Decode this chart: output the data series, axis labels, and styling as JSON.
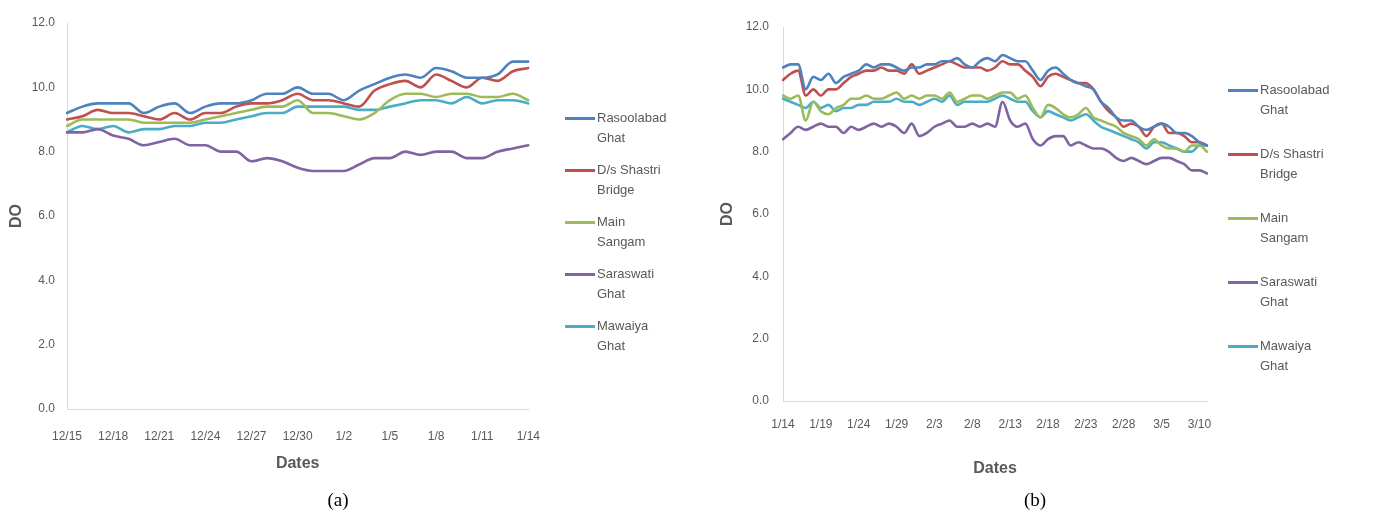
{
  "chart_data": [
    {
      "type": "line",
      "xlabel": "Dates",
      "ylabel": "DO",
      "annotations": [
        "(a)"
      ],
      "categories": [
        "12/15",
        null,
        null,
        "12/18",
        null,
        null,
        "12/21",
        null,
        null,
        "12/24",
        null,
        null,
        "12/27",
        null,
        null,
        "12/30",
        null,
        null,
        "1/2",
        null,
        null,
        "1/5",
        null,
        null,
        "1/8",
        null,
        null,
        "1/11",
        null,
        null,
        "1/14"
      ],
      "series": [
        {
          "name": "Rasoolabad Ghat",
          "color": "#4f81bd",
          "values": [
            9.2,
            9.4,
            9.5,
            9.5,
            9.5,
            9.2,
            9.4,
            9.5,
            9.2,
            9.4,
            9.5,
            9.5,
            9.6,
            9.8,
            9.8,
            10.0,
            9.8,
            9.8,
            9.6,
            9.9,
            10.1,
            10.3,
            10.4,
            10.3,
            10.6,
            10.5,
            10.3,
            10.3,
            10.4,
            10.8,
            10.8
          ]
        },
        {
          "name": "D/s Shastri Bridge",
          "color": "#c0504d",
          "values": [
            9.0,
            9.1,
            9.3,
            9.2,
            9.2,
            9.1,
            9.0,
            9.2,
            9.0,
            9.2,
            9.2,
            9.4,
            9.5,
            9.5,
            9.6,
            9.8,
            9.6,
            9.6,
            9.5,
            9.4,
            9.9,
            10.1,
            10.2,
            10.0,
            10.4,
            10.2,
            10.0,
            10.3,
            10.2,
            10.5,
            10.6
          ]
        },
        {
          "name": "Main Sangam",
          "color": "#9bbb59",
          "values": [
            8.8,
            9.0,
            9.0,
            9.0,
            9.0,
            8.9,
            8.9,
            8.9,
            8.9,
            9.0,
            9.1,
            9.2,
            9.3,
            9.4,
            9.4,
            9.6,
            9.2,
            9.2,
            9.1,
            9.0,
            9.2,
            9.6,
            9.8,
            9.8,
            9.7,
            9.8,
            9.8,
            9.7,
            9.7,
            9.8,
            9.6
          ]
        },
        {
          "name": "Saraswati Ghat",
          "color": "#8064a2",
          "values": [
            8.6,
            8.6,
            8.7,
            8.5,
            8.4,
            8.2,
            8.3,
            8.4,
            8.2,
            8.2,
            8.0,
            8.0,
            7.7,
            7.8,
            7.7,
            7.5,
            7.4,
            7.4,
            7.4,
            7.6,
            7.8,
            7.8,
            8.0,
            7.9,
            8.0,
            8.0,
            7.8,
            7.8,
            8.0,
            8.1,
            8.2
          ]
        },
        {
          "name": "Mawaiya Ghat",
          "color": "#4bacc6",
          "values": [
            8.6,
            8.8,
            8.7,
            8.8,
            8.6,
            8.7,
            8.7,
            8.8,
            8.8,
            8.9,
            8.9,
            9.0,
            9.1,
            9.2,
            9.2,
            9.4,
            9.4,
            9.4,
            9.4,
            9.3,
            9.3,
            9.4,
            9.5,
            9.6,
            9.6,
            9.5,
            9.7,
            9.5,
            9.6,
            9.6,
            9.5
          ]
        }
      ],
      "ylim": [
        0,
        12
      ],
      "yticks": [
        {
          "value": 0,
          "label": "0.0"
        },
        {
          "value": 2,
          "label": "2.0"
        },
        {
          "value": 4,
          "label": "4.0"
        },
        {
          "value": 6,
          "label": "6.0"
        },
        {
          "value": 8,
          "label": "8.0"
        },
        {
          "value": 10,
          "label": "10.0"
        },
        {
          "value": 12,
          "label": "12.0"
        }
      ],
      "legend": "right",
      "marker": "none",
      "line_style": "solid"
    },
    {
      "type": "line",
      "xlabel": "Dates",
      "ylabel": "DO",
      "annotations": [
        "(b)"
      ],
      "categories": [
        "1/14",
        null,
        null,
        null,
        null,
        "1/19",
        null,
        null,
        null,
        null,
        "1/24",
        null,
        null,
        null,
        null,
        "1/29",
        null,
        null,
        null,
        null,
        "2/3",
        null,
        null,
        null,
        null,
        "2/8",
        null,
        null,
        null,
        null,
        "2/13",
        null,
        null,
        null,
        null,
        "2/18",
        null,
        null,
        null,
        null,
        "2/23",
        null,
        null,
        null,
        null,
        "2/28",
        null,
        null,
        null,
        null,
        "3/5",
        null,
        null,
        null,
        null,
        "3/10",
        null
      ],
      "series": [
        {
          "name": "Rasoolabad Ghat",
          "color": "#4f81bd",
          "values": [
            10.7,
            10.8,
            10.8,
            10.0,
            10.4,
            10.3,
            10.5,
            10.2,
            10.4,
            10.5,
            10.6,
            10.8,
            10.7,
            10.8,
            10.8,
            10.7,
            10.6,
            10.7,
            10.7,
            10.8,
            10.8,
            10.9,
            10.9,
            11.0,
            10.8,
            10.7,
            10.9,
            11.0,
            10.9,
            11.1,
            11.0,
            10.9,
            10.9,
            10.6,
            10.3,
            10.6,
            10.7,
            10.5,
            10.3,
            10.2,
            10.1,
            10.0,
            9.6,
            9.4,
            9.1,
            9.0,
            9.0,
            8.8,
            8.7,
            8.8,
            8.9,
            8.8,
            8.6,
            8.6,
            8.5,
            8.3,
            8.2
          ]
        },
        {
          "name": "D/s Shastri Bridge",
          "color": "#c0504d",
          "values": [
            10.3,
            10.5,
            10.6,
            9.8,
            10.0,
            9.8,
            10.0,
            10.0,
            10.2,
            10.4,
            10.5,
            10.6,
            10.6,
            10.7,
            10.6,
            10.6,
            10.5,
            10.8,
            10.5,
            10.6,
            10.7,
            10.8,
            10.9,
            10.8,
            10.7,
            10.7,
            10.7,
            10.6,
            10.7,
            10.9,
            10.8,
            10.8,
            10.6,
            10.4,
            10.1,
            10.4,
            10.5,
            10.4,
            10.3,
            10.2,
            10.2,
            10.0,
            9.6,
            9.3,
            9.1,
            8.8,
            8.9,
            8.8,
            8.5,
            8.8,
            8.9,
            8.6,
            8.6,
            8.5,
            8.3,
            8.3,
            8.2
          ]
        },
        {
          "name": "Main Sangam",
          "color": "#9bbb59",
          "values": [
            9.8,
            9.7,
            9.8,
            9.0,
            9.6,
            9.3,
            9.2,
            9.4,
            9.5,
            9.7,
            9.7,
            9.8,
            9.7,
            9.7,
            9.8,
            9.9,
            9.7,
            9.8,
            9.7,
            9.8,
            9.8,
            9.7,
            9.9,
            9.6,
            9.7,
            9.8,
            9.8,
            9.7,
            9.8,
            9.9,
            9.9,
            9.7,
            9.8,
            9.4,
            9.1,
            9.5,
            9.4,
            9.2,
            9.1,
            9.2,
            9.4,
            9.1,
            9.0,
            8.9,
            8.8,
            8.6,
            8.5,
            8.4,
            8.2,
            8.4,
            8.2,
            8.1,
            8.1,
            8.0,
            8.2,
            8.2,
            8.0
          ]
        },
        {
          "name": "Saraswati Ghat",
          "color": "#8064a2",
          "values": [
            8.4,
            8.6,
            8.8,
            8.7,
            8.8,
            8.9,
            8.8,
            8.8,
            8.6,
            8.8,
            8.7,
            8.8,
            8.9,
            8.8,
            8.9,
            8.8,
            8.6,
            8.9,
            8.5,
            8.6,
            8.8,
            8.9,
            9.0,
            8.8,
            8.8,
            8.9,
            8.8,
            8.9,
            8.8,
            9.6,
            9.0,
            8.8,
            8.9,
            8.4,
            8.2,
            8.4,
            8.5,
            8.5,
            8.2,
            8.3,
            8.2,
            8.1,
            8.1,
            8.0,
            7.8,
            7.7,
            7.8,
            7.7,
            7.6,
            7.7,
            7.8,
            7.8,
            7.7,
            7.6,
            7.4,
            7.4,
            7.3
          ]
        },
        {
          "name": "Mawaiya Ghat",
          "color": "#4bacc6",
          "values": [
            9.7,
            9.6,
            9.5,
            9.4,
            9.6,
            9.4,
            9.5,
            9.3,
            9.4,
            9.4,
            9.5,
            9.5,
            9.6,
            9.6,
            9.6,
            9.7,
            9.6,
            9.6,
            9.5,
            9.6,
            9.7,
            9.6,
            9.8,
            9.5,
            9.6,
            9.6,
            9.6,
            9.6,
            9.7,
            9.8,
            9.7,
            9.6,
            9.6,
            9.3,
            9.1,
            9.3,
            9.2,
            9.1,
            9.0,
            9.1,
            9.2,
            9.0,
            8.8,
            8.7,
            8.6,
            8.5,
            8.4,
            8.3,
            8.1,
            8.3,
            8.3,
            8.2,
            8.1,
            8.0,
            8.0,
            8.2,
            8.2
          ]
        }
      ],
      "ylim": [
        0,
        12
      ],
      "yticks": [
        {
          "value": 0,
          "label": "0.0"
        },
        {
          "value": 2,
          "label": "2.0"
        },
        {
          "value": 4,
          "label": "4.0"
        },
        {
          "value": 6,
          "label": "6.0"
        },
        {
          "value": 8,
          "label": "8.0"
        },
        {
          "value": 10,
          "label": "10.0"
        },
        {
          "value": 12,
          "label": "12.0"
        }
      ],
      "legend": "right",
      "marker": "none",
      "line_style": "solid"
    }
  ]
}
